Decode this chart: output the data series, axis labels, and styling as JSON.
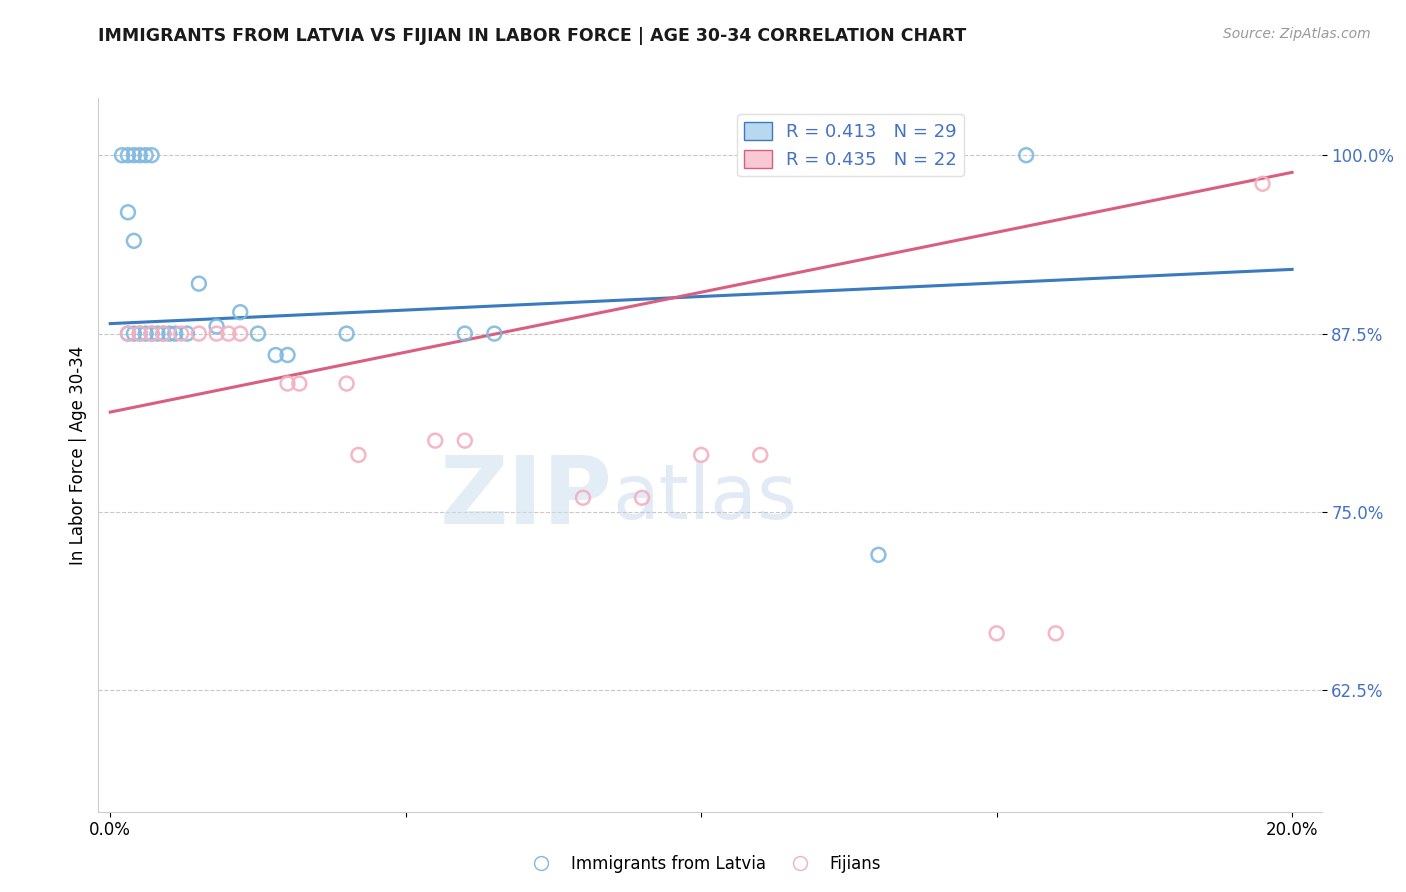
{
  "title": "IMMIGRANTS FROM LATVIA VS FIJIAN IN LABOR FORCE | AGE 30-34 CORRELATION CHART",
  "source_text": "Source: ZipAtlas.com",
  "ylabel": "In Labor Force | Age 30-34",
  "xlim": [
    -0.002,
    0.205
  ],
  "ylim": [
    0.54,
    1.04
  ],
  "yticks": [
    0.625,
    0.75,
    0.875,
    1.0
  ],
  "ytick_labels": [
    "62.5%",
    "75.0%",
    "87.5%",
    "100.0%"
  ],
  "xticks": [
    0.0,
    0.05,
    0.1,
    0.15,
    0.2
  ],
  "xtick_labels": [
    "0.0%",
    "",
    "",
    "",
    "20.0%"
  ],
  "legend_entries": [
    {
      "label": "R = 0.413   N = 29"
    },
    {
      "label": "R = 0.435   N = 22"
    }
  ],
  "legend_labels": [
    "Immigrants from Latvia",
    "Fijians"
  ],
  "watermark_zip": "ZIP",
  "watermark_atlas": "atlas",
  "blue_scatter_x": [
    0.003,
    0.004,
    0.005,
    0.006,
    0.007,
    0.008,
    0.009,
    0.01,
    0.011,
    0.013,
    0.002,
    0.003,
    0.004,
    0.005,
    0.006,
    0.007,
    0.003,
    0.004,
    0.015,
    0.018,
    0.022,
    0.025,
    0.028,
    0.03,
    0.04,
    0.06,
    0.065,
    0.13,
    0.155
  ],
  "blue_scatter_y": [
    0.875,
    0.875,
    0.875,
    0.875,
    0.875,
    0.875,
    0.875,
    0.875,
    0.875,
    0.875,
    1.0,
    1.0,
    1.0,
    1.0,
    1.0,
    1.0,
    0.96,
    0.94,
    0.91,
    0.88,
    0.89,
    0.875,
    0.86,
    0.86,
    0.875,
    0.875,
    0.875,
    0.72,
    1.0
  ],
  "pink_scatter_x": [
    0.003,
    0.005,
    0.007,
    0.009,
    0.012,
    0.015,
    0.018,
    0.02,
    0.022,
    0.03,
    0.032,
    0.04,
    0.042,
    0.055,
    0.06,
    0.08,
    0.09,
    0.1,
    0.11,
    0.15,
    0.16,
    0.195
  ],
  "pink_scatter_y": [
    0.875,
    0.875,
    0.875,
    0.875,
    0.875,
    0.875,
    0.875,
    0.875,
    0.875,
    0.84,
    0.84,
    0.84,
    0.79,
    0.8,
    0.8,
    0.76,
    0.76,
    0.79,
    0.79,
    0.665,
    0.665,
    0.98
  ],
  "blue_line_x": [
    0.0,
    0.2
  ],
  "blue_line_y": [
    0.882,
    0.92
  ],
  "pink_line_x": [
    0.0,
    0.2
  ],
  "pink_line_y": [
    0.82,
    0.988
  ],
  "scatter_size": 100,
  "blue_color": "#7fb8e0",
  "pink_color": "#f4afc0",
  "blue_line_color": "#3a7abf",
  "pink_line_color": "#d95f80",
  "background_color": "#ffffff",
  "grid_color": "#c8c8c8",
  "ytick_color": "#4472C4",
  "title_color": "#1a1a1a",
  "source_color": "#999999"
}
